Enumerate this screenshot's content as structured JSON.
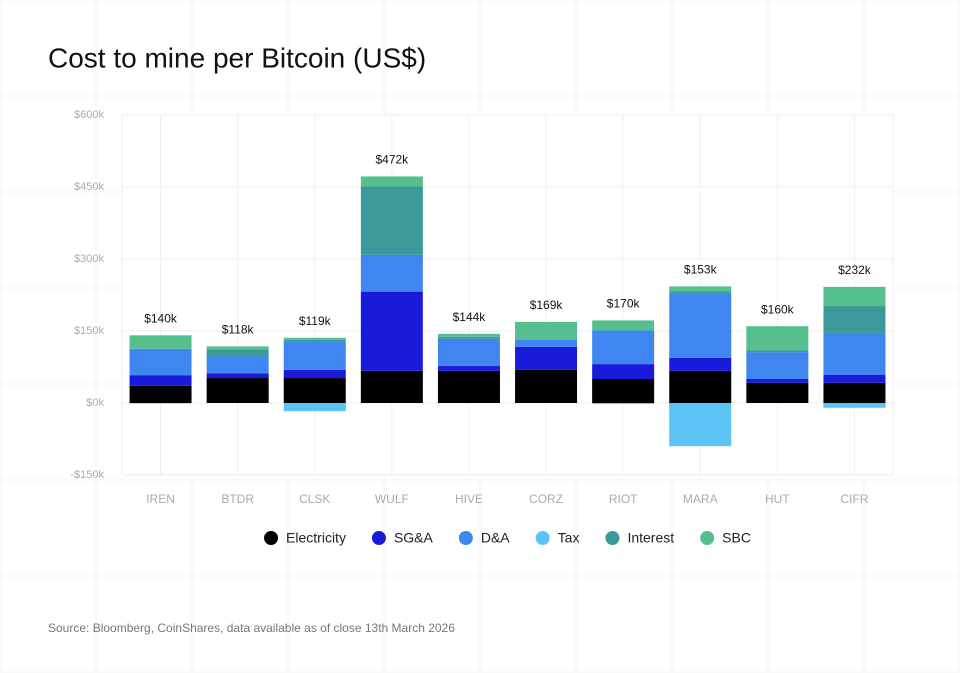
{
  "chart_data": {
    "type": "stacked-bar",
    "title": "Cost to mine per Bitcoin (US$)",
    "source": "Source: Bloomberg, CoinShares, data available as of close 13th March 2026",
    "categories": [
      "IREN",
      "BTDR",
      "CLSK",
      "WULF",
      "HIVE",
      "CORZ",
      "RIOT",
      "MARA",
      "HUT",
      "CIFR"
    ],
    "series": [
      {
        "name": "Electricity",
        "color": "#000000",
        "values": [
          36,
          52,
          52,
          67,
          67,
          69,
          50,
          67,
          42,
          42
        ]
      },
      {
        "name": "SG&A",
        "color": "#1a1adb",
        "values": [
          22,
          10,
          17,
          165,
          10,
          48,
          31,
          27,
          8,
          17
        ]
      },
      {
        "name": "D&A",
        "color": "#3f86f0",
        "values": [
          55,
          35,
          59,
          77,
          57,
          15,
          70,
          135,
          56,
          87
        ]
      },
      {
        "name": "Tax",
        "color": "#5bc4f5",
        "values": [
          -1,
          0,
          -17,
          0,
          0,
          0,
          -2,
          -90,
          0,
          -10
        ]
      },
      {
        "name": "Interest",
        "color": "#3a9a9a",
        "values": [
          0,
          15,
          4,
          142,
          4,
          0,
          0,
          4,
          4,
          56
        ]
      },
      {
        "name": "SBC",
        "color": "#55c08d",
        "values": [
          28,
          6,
          4,
          21,
          6,
          37,
          21,
          10,
          50,
          40
        ]
      }
    ],
    "totals": {
      "values": [
        140,
        118,
        119,
        472,
        144,
        169,
        170,
        153,
        160,
        232
      ],
      "value_labels": [
        "$140k",
        "$118k",
        "$119k",
        "$472k",
        "$144k",
        "$169k",
        "$170k",
        "$153k",
        "$160k",
        "$232k"
      ]
    },
    "ylim": [
      -150,
      600
    ],
    "yticks": [
      {
        "value": -150,
        "label": "-$150k"
      },
      {
        "value": 0,
        "label": "$0k"
      },
      {
        "value": 150,
        "label": "$150k"
      },
      {
        "value": 300,
        "label": "$300k"
      },
      {
        "value": 450,
        "label": "$450k"
      },
      {
        "value": 600,
        "label": "$600k"
      }
    ],
    "grid": true
  }
}
